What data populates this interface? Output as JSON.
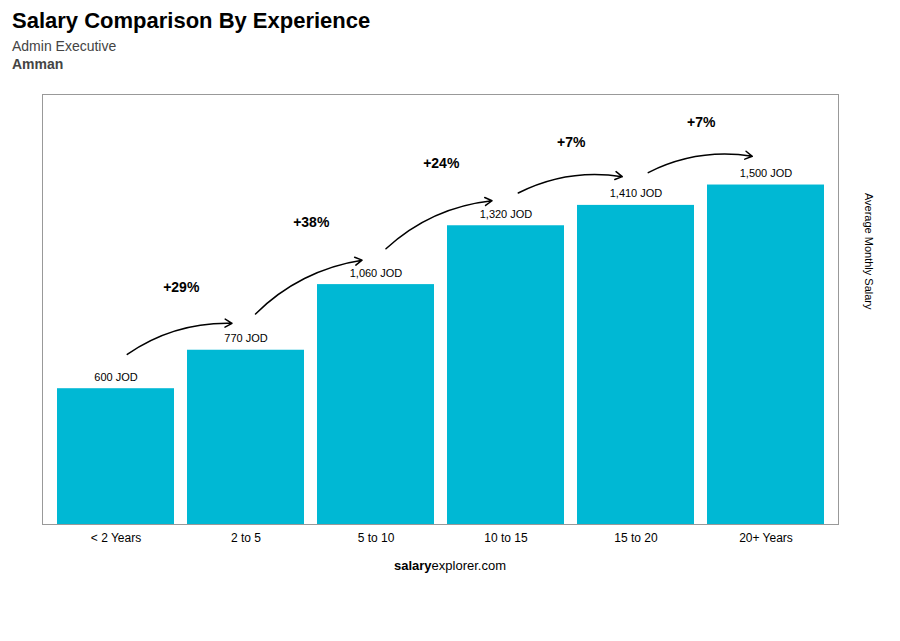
{
  "chart_data": {
    "type": "bar",
    "title": "Salary Comparison By Experience",
    "subtitle": [
      "Admin Executive",
      "Amman"
    ],
    "categories": [
      "< 2 Years",
      "2 to 5",
      "5 to 10",
      "10 to 15",
      "15 to 20",
      "20+ Years"
    ],
    "values": [
      600,
      770,
      1060,
      1320,
      1410,
      1500
    ],
    "value_labels": [
      "600 JOD",
      "770 JOD",
      "1,060 JOD",
      "1,320 JOD",
      "1,410 JOD",
      "1,500 JOD"
    ],
    "data_labels": true,
    "color": "#00b8d4",
    "ylabel": "Average Monthly Salary",
    "ylim": [
      0,
      1900
    ],
    "tick_labels": "x",
    "grid": false,
    "annotations": [
      "+29%",
      "+38%",
      "+24%",
      "+7%",
      "+7%"
    ],
    "caption": [
      "salary",
      "explorer.com"
    ]
  }
}
